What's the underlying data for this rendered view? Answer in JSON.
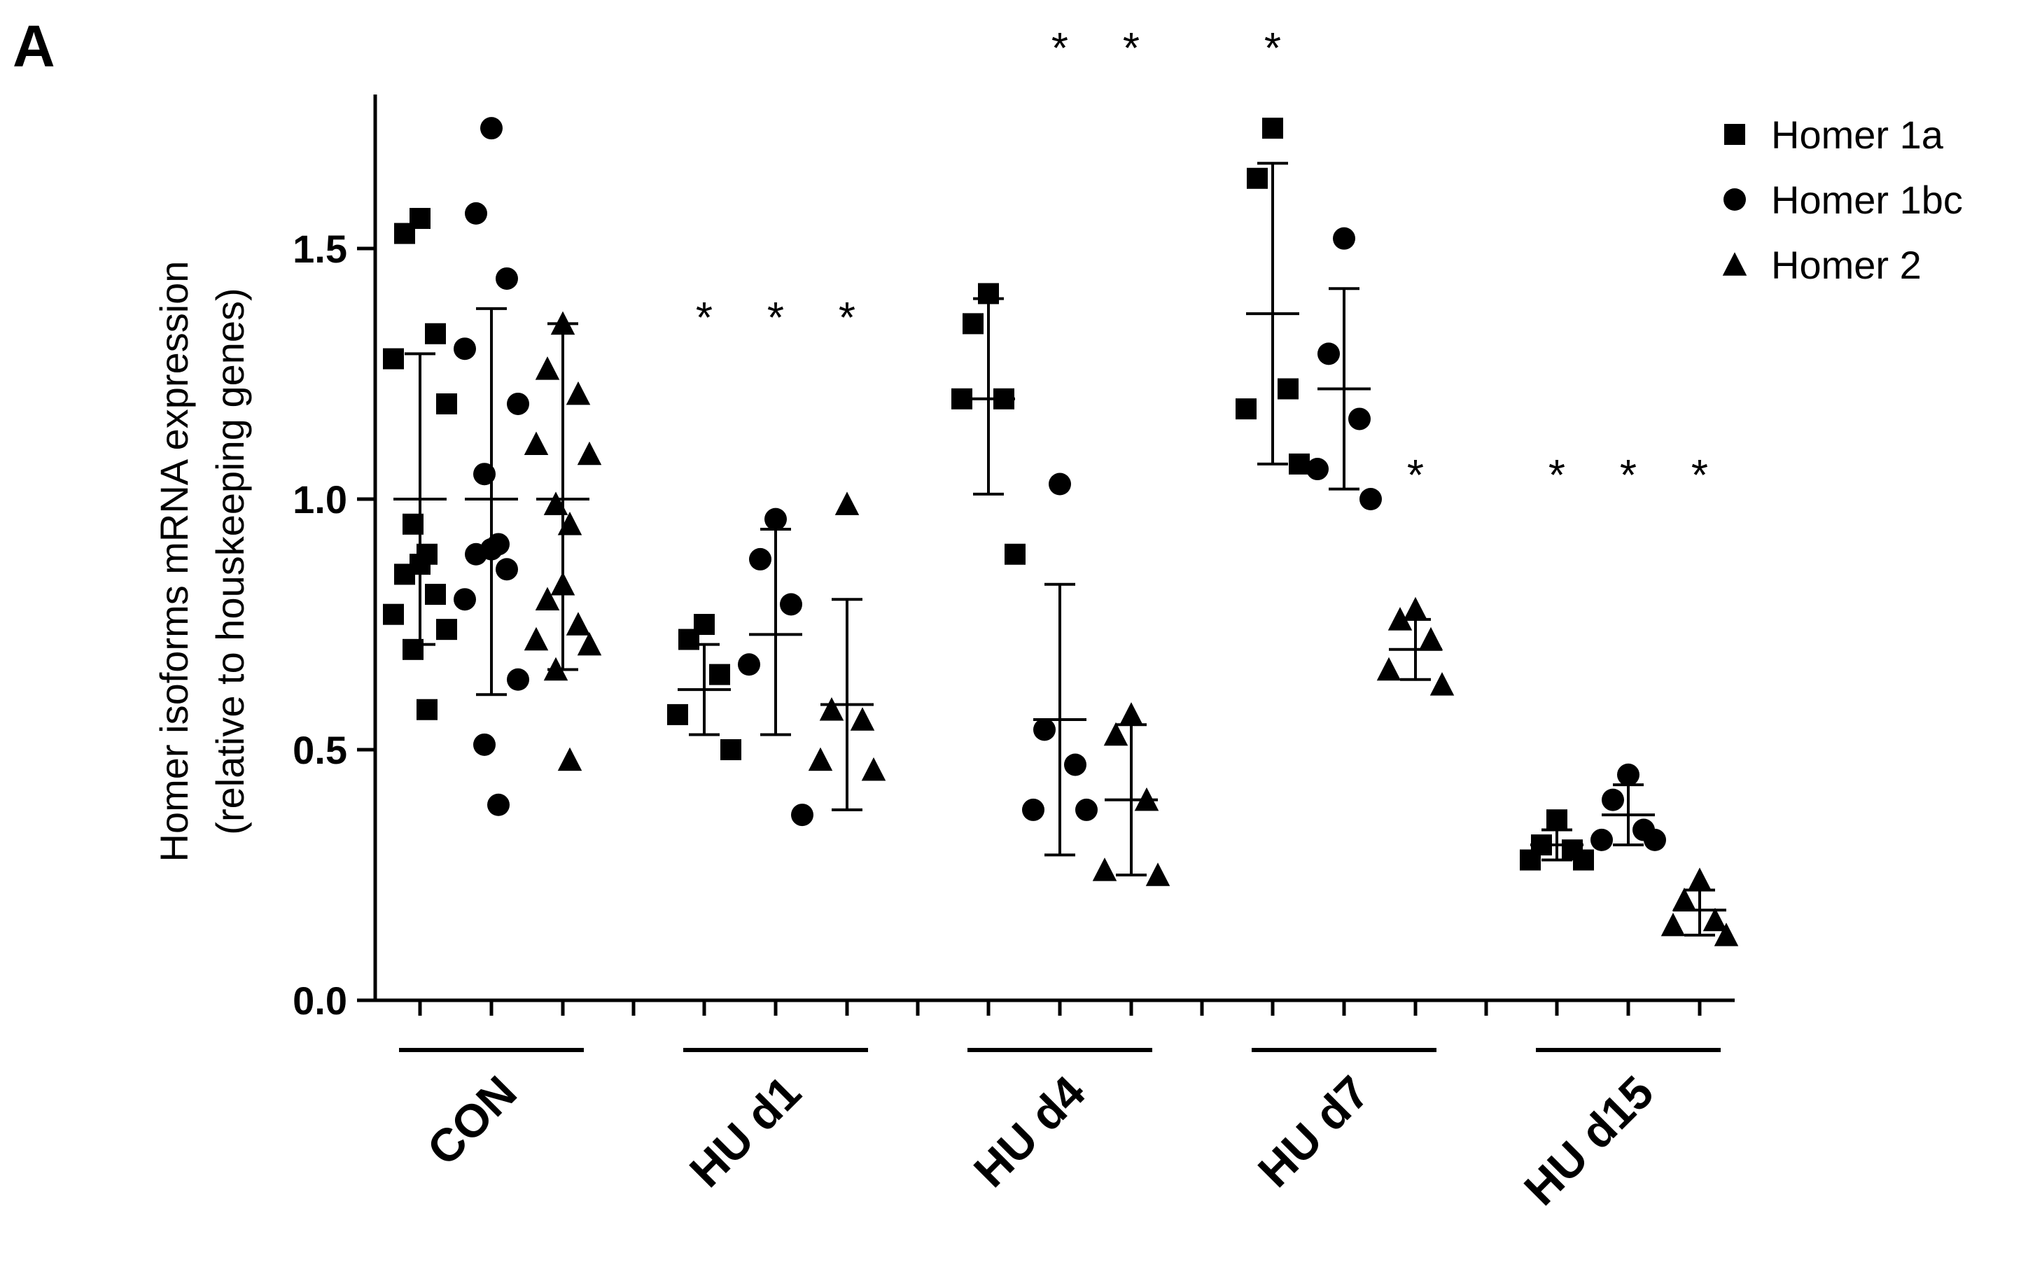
{
  "panel_label": "A",
  "chart_data": {
    "type": "scatter",
    "subtype": "grouped dot plot with mean and SD",
    "ylabel_line1": "Homer isoforms mRNA expression",
    "ylabel_line2": "(relative to houskeeping genes)",
    "ylim": [
      0,
      1.75
    ],
    "yticks": [
      {
        "value": 0.0,
        "label": "0.0"
      },
      {
        "value": 0.5,
        "label": "0.5"
      },
      {
        "value": 1.0,
        "label": "1.0"
      },
      {
        "value": 1.5,
        "label": "1.5"
      }
    ],
    "groups": [
      "CON",
      "HU d1",
      "HU d4",
      "HU d7",
      "HU d15"
    ],
    "series": [
      {
        "name": "Homer 1a",
        "marker": "square"
      },
      {
        "name": "Homer 1bc",
        "marker": "circle"
      },
      {
        "name": "Homer 2",
        "marker": "triangle"
      }
    ],
    "legend_position": "top-right",
    "significance_symbol": "*",
    "columns": [
      {
        "group": "CON",
        "series": "Homer 1a",
        "mean": 1.0,
        "sd_low": 0.71,
        "sd_high": 1.29,
        "significant": false,
        "points": [
          1.56,
          1.53,
          1.33,
          1.28,
          1.19,
          0.95,
          0.89,
          0.87,
          0.85,
          0.81,
          0.77,
          0.74,
          0.7,
          0.58
        ]
      },
      {
        "group": "CON",
        "series": "Homer 1bc",
        "mean": 1.0,
        "sd_low": 0.61,
        "sd_high": 1.38,
        "significant": false,
        "points": [
          1.74,
          1.57,
          1.44,
          1.3,
          1.19,
          1.05,
          0.91,
          0.9,
          0.89,
          0.86,
          0.8,
          0.64,
          0.51,
          0.39
        ]
      },
      {
        "group": "CON",
        "series": "Homer 2",
        "mean": 1.0,
        "sd_low": 0.66,
        "sd_high": 1.35,
        "significant": false,
        "points": [
          1.35,
          1.26,
          1.21,
          1.11,
          1.09,
          0.99,
          0.95,
          0.83,
          0.8,
          0.75,
          0.72,
          0.71,
          0.66,
          0.48
        ]
      },
      {
        "group": "HU d1",
        "series": "Homer 1a",
        "mean": 0.62,
        "sd_low": 0.53,
        "sd_high": 0.71,
        "significant": true,
        "points": [
          0.75,
          0.72,
          0.65,
          0.57,
          0.5
        ]
      },
      {
        "group": "HU d1",
        "series": "Homer 1bc",
        "mean": 0.73,
        "sd_low": 0.53,
        "sd_high": 0.94,
        "significant": true,
        "points": [
          0.96,
          0.88,
          0.79,
          0.67,
          0.37
        ]
      },
      {
        "group": "HU d1",
        "series": "Homer 2",
        "mean": 0.59,
        "sd_low": 0.38,
        "sd_high": 0.8,
        "significant": true,
        "points": [
          0.99,
          0.58,
          0.56,
          0.48,
          0.46
        ]
      },
      {
        "group": "HU d4",
        "series": "Homer 1a",
        "mean": 1.2,
        "sd_low": 1.01,
        "sd_high": 1.4,
        "significant": false,
        "points": [
          1.41,
          1.35,
          1.2,
          1.2,
          0.89
        ]
      },
      {
        "group": "HU d4",
        "series": "Homer 1bc",
        "mean": 0.56,
        "sd_low": 0.29,
        "sd_high": 0.83,
        "significant": true,
        "points": [
          1.03,
          0.54,
          0.47,
          0.38,
          0.38
        ]
      },
      {
        "group": "HU d4",
        "series": "Homer 2",
        "mean": 0.4,
        "sd_low": 0.25,
        "sd_high": 0.55,
        "significant": true,
        "points": [
          0.57,
          0.53,
          0.4,
          0.26,
          0.25
        ]
      },
      {
        "group": "HU d7",
        "series": "Homer 1a",
        "mean": 1.37,
        "sd_low": 1.07,
        "sd_high": 1.67,
        "significant": true,
        "points": [
          1.74,
          1.64,
          1.22,
          1.18,
          1.07
        ]
      },
      {
        "group": "HU d7",
        "series": "Homer 1bc",
        "mean": 1.22,
        "sd_low": 1.02,
        "sd_high": 1.42,
        "significant": false,
        "points": [
          1.52,
          1.29,
          1.16,
          1.06,
          1.0
        ]
      },
      {
        "group": "HU d7",
        "series": "Homer 2",
        "mean": 0.7,
        "sd_low": 0.64,
        "sd_high": 0.76,
        "significant": true,
        "points": [
          0.78,
          0.76,
          0.72,
          0.66,
          0.63
        ]
      },
      {
        "group": "HU d15",
        "series": "Homer 1a",
        "mean": 0.31,
        "sd_low": 0.28,
        "sd_high": 0.34,
        "significant": true,
        "points": [
          0.36,
          0.31,
          0.3,
          0.28,
          0.28
        ]
      },
      {
        "group": "HU d15",
        "series": "Homer 1bc",
        "mean": 0.37,
        "sd_low": 0.31,
        "sd_high": 0.43,
        "significant": true,
        "points": [
          0.45,
          0.4,
          0.34,
          0.32,
          0.32
        ]
      },
      {
        "group": "HU d15",
        "series": "Homer 2",
        "mean": 0.18,
        "sd_low": 0.13,
        "sd_high": 0.22,
        "significant": true,
        "points": [
          0.24,
          0.2,
          0.16,
          0.15,
          0.13
        ]
      }
    ]
  }
}
